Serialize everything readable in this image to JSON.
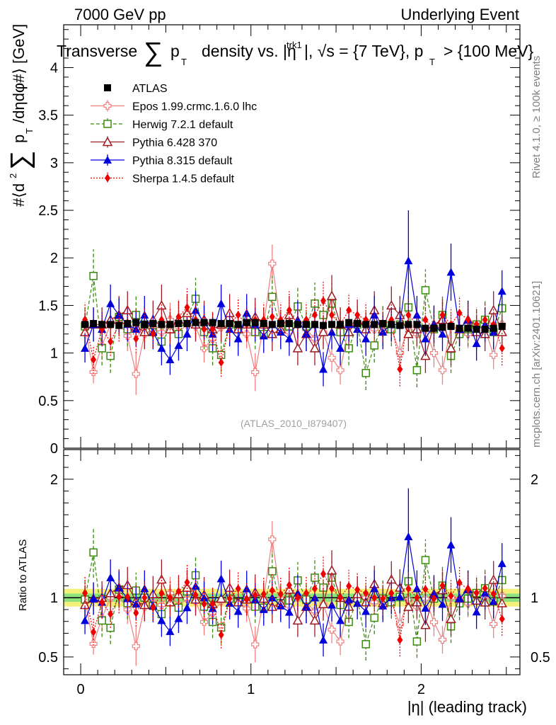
{
  "header": {
    "left": "7000 GeV pp",
    "right": "Underlying Event"
  },
  "side_notes": {
    "rivet": "Rivet 4.1.0, ≥ 100k events",
    "mcplots": "mcplots.cern.ch [arXiv:2401.10621]"
  },
  "colors": {
    "atlas": "#000000",
    "epos": "#f08080",
    "herwig": "#3a8a0e",
    "pythia6": "#9b1b22",
    "pythia8": "#0000dd",
    "sherpa": "#ee0000",
    "band_inner": "#8fe37f",
    "band_outer": "#f5f07a"
  },
  "chart_data": [
    {
      "type": "scatter",
      "panel": "main",
      "title": "Transverse ∑ pT density vs. |η^trk1|, √s = {7 TeV}, pT > {100 MeV}",
      "title_parts": {
        "a": "Transverse",
        "sum": "∑",
        "p": "p",
        "t": "T",
        "b": "density vs. |η",
        "sup": "trk1",
        "c": "|, √s = {7 TeV}, p",
        "d": "> {100 MeV}"
      },
      "ylabel": "#⟨d² ∑ pT /dηdφ#⟩ [GeV]",
      "ylabel_parts": {
        "a": "#⟨d",
        "two": "2",
        "sum": "∑",
        "p": "p",
        "t": "T",
        "b": "/dηdφ#⟩ [GeV]"
      },
      "xlabel": "",
      "xlim": [
        -0.1,
        2.58
      ],
      "ylim": [
        0,
        4.45
      ],
      "yticks": [
        0,
        0.5,
        1,
        1.5,
        2,
        2.5,
        3,
        3.5,
        4
      ],
      "ytick_labels": [
        "0",
        "0.5",
        "1",
        "1.5",
        "2",
        "2.5",
        "3",
        "3.5",
        "4"
      ],
      "watermark": "(ATLAS_2010_I879407)",
      "legend_position": "top-left",
      "x": [
        0.025,
        0.075,
        0.125,
        0.175,
        0.225,
        0.275,
        0.325,
        0.375,
        0.425,
        0.475,
        0.525,
        0.575,
        0.625,
        0.675,
        0.725,
        0.775,
        0.825,
        0.875,
        0.925,
        0.975,
        1.025,
        1.075,
        1.125,
        1.175,
        1.225,
        1.275,
        1.325,
        1.375,
        1.425,
        1.475,
        1.525,
        1.575,
        1.625,
        1.675,
        1.725,
        1.775,
        1.825,
        1.875,
        1.925,
        1.975,
        2.025,
        2.075,
        2.125,
        2.175,
        2.225,
        2.275,
        2.325,
        2.375,
        2.425,
        2.475
      ],
      "series": [
        {
          "name": "ATLAS",
          "key": "atlas",
          "marker": "square-filled",
          "line": "none",
          "values": [
            1.3,
            1.31,
            1.3,
            1.3,
            1.29,
            1.31,
            1.32,
            1.3,
            1.31,
            1.3,
            1.3,
            1.31,
            1.31,
            1.32,
            1.32,
            1.32,
            1.31,
            1.31,
            1.3,
            1.32,
            1.32,
            1.31,
            1.3,
            1.31,
            1.31,
            1.3,
            1.3,
            1.3,
            1.29,
            1.3,
            1.3,
            1.32,
            1.31,
            1.3,
            1.3,
            1.31,
            1.3,
            1.29,
            1.3,
            1.3,
            1.26,
            1.26,
            1.27,
            1.28,
            1.26,
            1.26,
            1.25,
            1.25,
            1.26,
            1.28
          ],
          "errors": [
            0.04,
            0.04,
            0.04,
            0.04,
            0.04,
            0.04,
            0.04,
            0.04,
            0.04,
            0.04,
            0.04,
            0.04,
            0.04,
            0.04,
            0.04,
            0.04,
            0.04,
            0.04,
            0.04,
            0.04,
            0.04,
            0.04,
            0.04,
            0.04,
            0.04,
            0.04,
            0.04,
            0.04,
            0.04,
            0.04,
            0.04,
            0.04,
            0.04,
            0.04,
            0.04,
            0.04,
            0.04,
            0.04,
            0.04,
            0.04,
            0.04,
            0.04,
            0.04,
            0.04,
            0.04,
            0.04,
            0.04,
            0.04,
            0.04,
            0.04
          ]
        },
        {
          "name": "Epos 1.99.crmc.1.6.0 lhc",
          "key": "epos",
          "marker": "cross-open",
          "line": "solid",
          "values": [
            1.28,
            0.8,
            1.08,
            1.3,
            1.32,
            1.18,
            0.78,
            1.2,
            1.25,
            1.22,
            1.35,
            1.22,
            1.3,
            1.28,
            1.05,
            1.15,
            1.27,
            1.3,
            1.25,
            1.2,
            0.8,
            1.3,
            1.94,
            1.3,
            1.22,
            1.3,
            1.25,
            1.15,
            1.22,
            0.95,
            0.82,
            1.28,
            1.32,
            1.3,
            1.25,
            1.22,
            1.25,
            1.0,
            1.28,
            1.2,
            1.25,
            1.0,
            0.82,
            1.28,
            1.25,
            1.2,
            1.3,
            1.25,
            0.98,
            1.3
          ],
          "errors": [
            0.18,
            0.12,
            0.15,
            0.15,
            0.15,
            0.16,
            0.22,
            0.16,
            0.15,
            0.15,
            0.18,
            0.15,
            0.15,
            0.16,
            0.15,
            0.15,
            0.16,
            0.15,
            0.15,
            0.15,
            0.2,
            0.18,
            0.2,
            0.16,
            0.15,
            0.15,
            0.16,
            0.15,
            0.15,
            0.15,
            0.15,
            0.15,
            0.18,
            0.15,
            0.15,
            0.15,
            0.15,
            0.15,
            0.15,
            0.15,
            0.15,
            0.15,
            0.15,
            0.15,
            0.15,
            0.15,
            0.15,
            0.15,
            0.15,
            0.15
          ]
        },
        {
          "name": "Herwig 7.2.1 default",
          "key": "herwig",
          "marker": "square-open",
          "line": "dashed",
          "values": [
            1.28,
            1.81,
            1.05,
            0.97,
            1.38,
            1.25,
            1.4,
            1.3,
            1.22,
            1.12,
            1.25,
            1.2,
            1.38,
            1.57,
            1.22,
            1.05,
            0.98,
            1.3,
            1.25,
            1.35,
            1.22,
            1.2,
            1.59,
            1.25,
            1.28,
            1.49,
            1.28,
            1.52,
            1.4,
            1.52,
            1.22,
            1.05,
            1.3,
            0.79,
            1.08,
            1.3,
            1.25,
            1.3,
            1.48,
            0.82,
            1.66,
            1.25,
            1.4,
            0.97,
            1.2,
            1.25,
            1.3,
            1.35,
            1.22,
            1.47
          ],
          "errors": [
            0.2,
            0.28,
            0.18,
            0.18,
            0.2,
            0.18,
            0.2,
            0.2,
            0.18,
            0.18,
            0.18,
            0.18,
            0.2,
            0.22,
            0.18,
            0.18,
            0.18,
            0.2,
            0.18,
            0.2,
            0.18,
            0.18,
            0.22,
            0.2,
            0.18,
            0.2,
            0.18,
            0.22,
            0.2,
            0.22,
            0.18,
            0.18,
            0.2,
            0.18,
            0.18,
            0.2,
            0.18,
            0.18,
            0.22,
            0.18,
            0.22,
            0.18,
            0.2,
            0.18,
            0.18,
            0.18,
            0.18,
            0.2,
            0.18,
            0.2
          ]
        },
        {
          "name": "Pythia 6.428 370",
          "key": "pythia6",
          "marker": "triangle-open",
          "line": "solid",
          "values": [
            1.22,
            1.3,
            1.3,
            1.35,
            1.4,
            1.45,
            1.28,
            1.22,
            1.35,
            1.5,
            1.25,
            1.35,
            1.42,
            1.3,
            1.35,
            1.25,
            1.3,
            1.42,
            1.25,
            1.3,
            1.38,
            1.3,
            1.2,
            1.25,
            1.4,
            1.05,
            1.2,
            1.05,
            1.22,
            1.6,
            1.3,
            1.22,
            1.35,
            1.25,
            1.45,
            1.25,
            1.5,
            1.4,
            1.2,
            1.25,
            0.97,
            1.3,
            1.35,
            1.05,
            1.25,
            1.35,
            1.22,
            1.2,
            1.45,
            1.22
          ],
          "errors": [
            0.2,
            0.18,
            0.18,
            0.2,
            0.2,
            0.2,
            0.18,
            0.18,
            0.2,
            0.22,
            0.18,
            0.2,
            0.2,
            0.18,
            0.2,
            0.18,
            0.18,
            0.2,
            0.18,
            0.18,
            0.2,
            0.18,
            0.18,
            0.18,
            0.2,
            0.18,
            0.18,
            0.18,
            0.18,
            0.22,
            0.18,
            0.18,
            0.2,
            0.18,
            0.2,
            0.18,
            0.2,
            0.2,
            0.18,
            0.18,
            0.18,
            0.18,
            0.2,
            0.18,
            0.18,
            0.2,
            0.18,
            0.18,
            0.2,
            0.18
          ]
        },
        {
          "name": "Pythia 8.315 default",
          "key": "pythia8",
          "marker": "triangle-filled",
          "line": "solid",
          "values": [
            1.05,
            1.3,
            1.25,
            1.52,
            1.4,
            1.3,
            1.25,
            1.4,
            1.22,
            1.05,
            0.93,
            1.08,
            1.2,
            1.45,
            1.32,
            1.2,
            1.52,
            1.25,
            1.15,
            1.42,
            1.3,
            1.18,
            1.3,
            1.22,
            1.15,
            1.35,
            1.2,
            1.3,
            0.83,
            1.22,
            1.05,
            1.3,
            1.25,
            1.15,
            1.4,
            1.22,
            1.3,
            1.3,
            1.97,
            1.4,
            1.15,
            1.3,
            1.2,
            1.85,
            1.25,
            1.35,
            1.1,
            1.3,
            1.22,
            1.65
          ],
          "errors": [
            0.15,
            0.18,
            0.18,
            0.2,
            0.18,
            0.18,
            0.18,
            0.2,
            0.18,
            0.18,
            0.16,
            0.16,
            0.18,
            0.2,
            0.18,
            0.18,
            0.2,
            0.18,
            0.18,
            0.2,
            0.18,
            0.18,
            0.18,
            0.18,
            0.18,
            0.2,
            0.18,
            0.18,
            0.18,
            0.18,
            0.18,
            0.18,
            0.18,
            0.18,
            0.2,
            0.18,
            0.18,
            0.18,
            0.53,
            0.2,
            0.18,
            0.2,
            0.18,
            0.3,
            0.18,
            0.2,
            0.18,
            0.18,
            0.18,
            0.22
          ]
        },
        {
          "name": "Sherpa 1.4.5 default",
          "key": "sherpa",
          "marker": "diamond-filled",
          "line": "dotted",
          "values": [
            1.35,
            0.93,
            1.25,
            1.12,
            1.3,
            1.32,
            1.15,
            1.3,
            1.2,
            1.35,
            1.3,
            1.38,
            1.48,
            1.35,
            1.25,
            1.25,
            0.9,
            1.3,
            1.4,
            1.3,
            1.35,
            1.35,
            1.38,
            1.35,
            1.45,
            1.3,
            1.35,
            1.4,
            1.55,
            1.4,
            1.3,
            1.45,
            1.4,
            1.35,
            1.3,
            1.3,
            1.35,
            0.83,
            1.4,
            1.3,
            1.35,
            1.25,
            1.4,
            1.3,
            1.42,
            1.35,
            1.3,
            1.35,
            1.3,
            1.05
          ],
          "errors": [
            0.18,
            0.15,
            0.18,
            0.15,
            0.18,
            0.18,
            0.15,
            0.18,
            0.15,
            0.18,
            0.18,
            0.18,
            0.2,
            0.18,
            0.18,
            0.18,
            0.15,
            0.18,
            0.18,
            0.18,
            0.18,
            0.18,
            0.18,
            0.18,
            0.2,
            0.18,
            0.18,
            0.18,
            0.2,
            0.18,
            0.18,
            0.18,
            0.18,
            0.18,
            0.18,
            0.18,
            0.18,
            0.18,
            0.18,
            0.18,
            0.18,
            0.18,
            0.18,
            0.18,
            0.18,
            0.18,
            0.18,
            0.18,
            0.18,
            0.18
          ]
        }
      ]
    },
    {
      "type": "scatter",
      "panel": "ratio",
      "ylabel": "Ratio to ATLAS",
      "xlabel": "|η| (leading track)",
      "xlim": [
        -0.1,
        2.58
      ],
      "ylim": [
        0.35,
        2.25
      ],
      "yticks": [
        0.5,
        1,
        2
      ],
      "ytick_labels": [
        "0.5",
        "1",
        "2"
      ],
      "xticks": [
        0,
        1,
        2
      ],
      "xtick_labels": [
        "0",
        "1",
        "2"
      ],
      "reference_line": 1,
      "band_inner_halfwidth": 0.035,
      "band_outer_halfwidth": 0.075,
      "derived_from": "main panel series divided by ATLAS values"
    }
  ]
}
